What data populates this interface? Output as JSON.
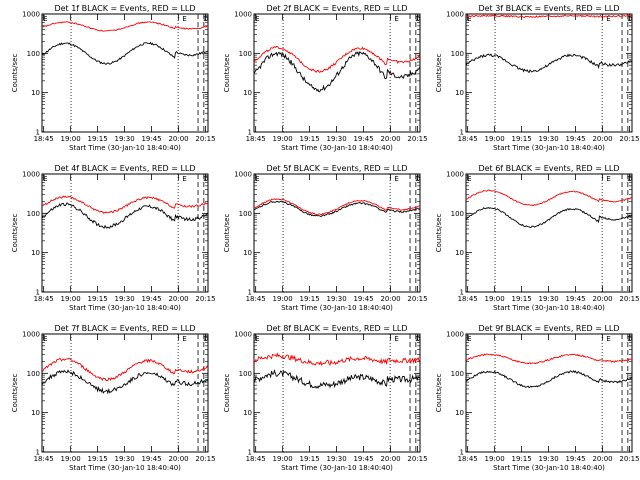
{
  "chart_data": [
    {
      "type": "line",
      "title": "Det 1f BLACK = Events, RED = LLD",
      "xlabel": "Start Time (30-Jan-10 18:40:40)",
      "ylabel": "Counts/sec",
      "yscale": "log",
      "ylim": [
        1,
        1000
      ],
      "xticks": [
        "18:45",
        "19:00",
        "19:15",
        "19:30",
        "19:45",
        "20:00",
        "20:15"
      ],
      "yticks": [
        "1",
        "10",
        "100",
        "1000"
      ],
      "annotations": [
        "E",
        "E",
        "D"
      ],
      "series": [
        {
          "name": "Events",
          "color": "#000000",
          "base": [
            180,
            55,
            180,
            55,
            90
          ],
          "noise": 0.05
        },
        {
          "name": "LLD",
          "color": "#ff0000",
          "base": [
            620,
            370,
            620,
            370,
            420
          ],
          "noise": 0.03
        }
      ]
    },
    {
      "type": "line",
      "title": "Det 2f BLACK = Events, RED = LLD",
      "xlabel": "Start Time (30-Jan-10 18:40:40)",
      "ylabel": "Counts/sec",
      "yscale": "log",
      "ylim": [
        1,
        1000
      ],
      "xticks": [
        "18:45",
        "19:00",
        "19:15",
        "19:30",
        "19:45",
        "20:00",
        "20:15"
      ],
      "yticks": [
        "1",
        "10",
        "100",
        "1000"
      ],
      "annotations": [
        "E",
        "E",
        "D"
      ],
      "series": [
        {
          "name": "Events",
          "color": "#000000",
          "base": [
            100,
            12,
            100,
            12,
            25
          ],
          "noise": 0.12
        },
        {
          "name": "LLD",
          "color": "#ff0000",
          "base": [
            140,
            35,
            135,
            35,
            60
          ],
          "noise": 0.06
        }
      ]
    },
    {
      "type": "line",
      "title": "Det 3f BLACK = Events, RED = LLD",
      "xlabel": "Start Time (30-Jan-10 18:40:40)",
      "ylabel": "Counts/sec",
      "yscale": "log",
      "ylim": [
        1,
        1000
      ],
      "xticks": [
        "18:45",
        "19:00",
        "19:15",
        "19:30",
        "19:45",
        "20:00",
        "20:15"
      ],
      "yticks": [
        "1",
        "10",
        "100",
        "1000"
      ],
      "annotations": [
        "E",
        "E",
        "D"
      ],
      "series": [
        {
          "name": "Events",
          "color": "#000000",
          "base": [
            90,
            35,
            90,
            35,
            50
          ],
          "noise": 0.07
        },
        {
          "name": "LLD",
          "color": "#ff0000",
          "base": [
            900,
            850,
            900,
            850,
            880
          ],
          "noise": 0.04
        }
      ]
    },
    {
      "type": "line",
      "title": "Det 4f BLACK = Events, RED = LLD",
      "xlabel": "Start Time (30-Jan-10 18:40:40)",
      "ylabel": "Counts/sec",
      "yscale": "log",
      "ylim": [
        1,
        1000
      ],
      "xticks": [
        "18:45",
        "19:00",
        "19:15",
        "19:30",
        "19:45",
        "20:00",
        "20:15"
      ],
      "yticks": [
        "1",
        "10",
        "100",
        "1000"
      ],
      "annotations": [
        "E",
        "E",
        "D"
      ],
      "series": [
        {
          "name": "Events",
          "color": "#000000",
          "base": [
            170,
            45,
            150,
            45,
            70
          ],
          "noise": 0.08
        },
        {
          "name": "LLD",
          "color": "#ff0000",
          "base": [
            260,
            105,
            250,
            105,
            150
          ],
          "noise": 0.05
        }
      ]
    },
    {
      "type": "line",
      "title": "Det 5f BLACK = Events, RED = LLD",
      "xlabel": "Start Time (30-Jan-10 18:40:40)",
      "ylabel": "Counts/sec",
      "yscale": "log",
      "ylim": [
        1,
        1000
      ],
      "xticks": [
        "18:45",
        "19:00",
        "19:15",
        "19:30",
        "19:45",
        "20:00",
        "20:15"
      ],
      "yticks": [
        "1",
        "10",
        "100",
        "1000"
      ],
      "annotations": [
        "E",
        "E",
        "D"
      ],
      "series": [
        {
          "name": "Events",
          "color": "#000000",
          "base": [
            200,
            85,
            180,
            85,
            110
          ],
          "noise": 0.04
        },
        {
          "name": "LLD",
          "color": "#ff0000",
          "base": [
            230,
            95,
            210,
            95,
            125
          ],
          "noise": 0.03
        }
      ]
    },
    {
      "type": "line",
      "title": "Det 6f BLACK = Events, RED = LLD",
      "xlabel": "Start Time (30-Jan-10 18:40:40)",
      "ylabel": "Counts/sec",
      "yscale": "log",
      "ylim": [
        1,
        1000
      ],
      "xticks": [
        "18:45",
        "19:00",
        "19:15",
        "19:30",
        "19:45",
        "20:00",
        "20:15"
      ],
      "yticks": [
        "1",
        "10",
        "100",
        "1000"
      ],
      "annotations": [
        "E",
        "E",
        "D"
      ],
      "series": [
        {
          "name": "Events",
          "color": "#000000",
          "base": [
            140,
            45,
            130,
            45,
            70
          ],
          "noise": 0.04
        },
        {
          "name": "LLD",
          "color": "#ff0000",
          "base": [
            380,
            160,
            360,
            160,
            200
          ],
          "noise": 0.03
        }
      ]
    },
    {
      "type": "line",
      "title": "Det 7f BLACK = Events, RED = LLD",
      "xlabel": "Start Time (30-Jan-10 18:40:40)",
      "ylabel": "Counts/sec",
      "yscale": "log",
      "ylim": [
        1,
        1000
      ],
      "xticks": [
        "18:45",
        "19:00",
        "19:15",
        "19:30",
        "19:45",
        "20:00",
        "20:15"
      ],
      "yticks": [
        "1",
        "10",
        "100",
        "1000"
      ],
      "annotations": [
        "E",
        "E",
        "D"
      ],
      "series": [
        {
          "name": "Events",
          "color": "#000000",
          "base": [
            110,
            35,
            100,
            35,
            55
          ],
          "noise": 0.1
        },
        {
          "name": "LLD",
          "color": "#ff0000",
          "base": [
            230,
            70,
            210,
            70,
            110
          ],
          "noise": 0.07
        }
      ]
    },
    {
      "type": "line",
      "title": "Det 8f BLACK = Events, RED = LLD",
      "xlabel": "Start Time (30-Jan-10 18:40:40)",
      "ylabel": "Counts/sec",
      "yscale": "log",
      "ylim": [
        1,
        1000
      ],
      "xticks": [
        "18:45",
        "19:00",
        "19:15",
        "19:30",
        "19:45",
        "20:00",
        "20:15"
      ],
      "yticks": [
        "1",
        "10",
        "100",
        "1000"
      ],
      "annotations": [
        "E",
        "E",
        "D"
      ],
      "series": [
        {
          "name": "Events",
          "color": "#000000",
          "base": [
            100,
            50,
            80,
            45,
            70
          ],
          "noise": 0.16
        },
        {
          "name": "LLD",
          "color": "#ff0000",
          "base": [
            280,
            180,
            240,
            170,
            210
          ],
          "noise": 0.12
        }
      ]
    },
    {
      "type": "line",
      "title": "Det 9f BLACK = Events, RED = LLD",
      "xlabel": "Start Time (30-Jan-10 18:40:40)",
      "ylabel": "Counts/sec",
      "yscale": "log",
      "ylim": [
        1,
        1000
      ],
      "xticks": [
        "18:45",
        "19:00",
        "19:15",
        "19:30",
        "19:45",
        "20:00",
        "20:15"
      ],
      "yticks": [
        "1",
        "10",
        "100",
        "1000"
      ],
      "annotations": [
        "E",
        "E",
        "D"
      ],
      "series": [
        {
          "name": "Events",
          "color": "#000000",
          "base": [
            110,
            45,
            110,
            45,
            60
          ],
          "noise": 0.05
        },
        {
          "name": "LLD",
          "color": "#ff0000",
          "base": [
            300,
            180,
            300,
            180,
            200
          ],
          "noise": 0.04
        }
      ]
    }
  ]
}
